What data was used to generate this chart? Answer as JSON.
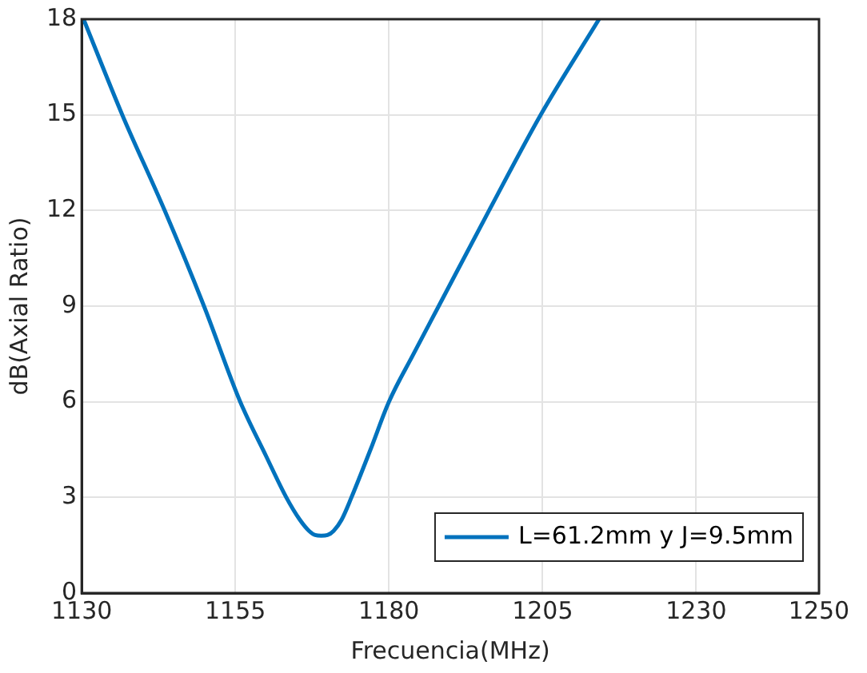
{
  "chart_data": {
    "type": "line",
    "xlabel": "Frecuencia(MHz)",
    "ylabel": "dB(Axial Ratio)",
    "series": [
      {
        "name": "L=61.2mm y J=9.5mm",
        "color": "#0072bd",
        "x": [
          1130.3,
          1136.6,
          1143.5,
          1149.9,
          1155.8,
          1160,
          1163.3,
          1165.5,
          1167,
          1168,
          1169,
          1170,
          1171,
          1172.3,
          1173.9,
          1177,
          1180,
          1184,
          1188.1,
          1196.3,
          1204.7,
          1214.2
        ],
        "values": [
          18,
          15,
          12,
          9,
          6,
          4.3,
          3,
          2.3,
          1.95,
          1.82,
          1.8,
          1.82,
          1.95,
          2.3,
          3,
          4.5,
          6,
          7.5,
          9,
          12,
          15,
          18
        ]
      }
    ],
    "xlim": [
      1130,
      1250
    ],
    "xticks": [
      1130,
      1155,
      1180,
      1205,
      1230,
      1250
    ],
    "ylim": [
      0,
      18
    ],
    "yticks": [
      0,
      3,
      6,
      9,
      12,
      15,
      18
    ],
    "grid": true,
    "legend": "bottom right",
    "line_style": "solid",
    "marker": "none"
  }
}
